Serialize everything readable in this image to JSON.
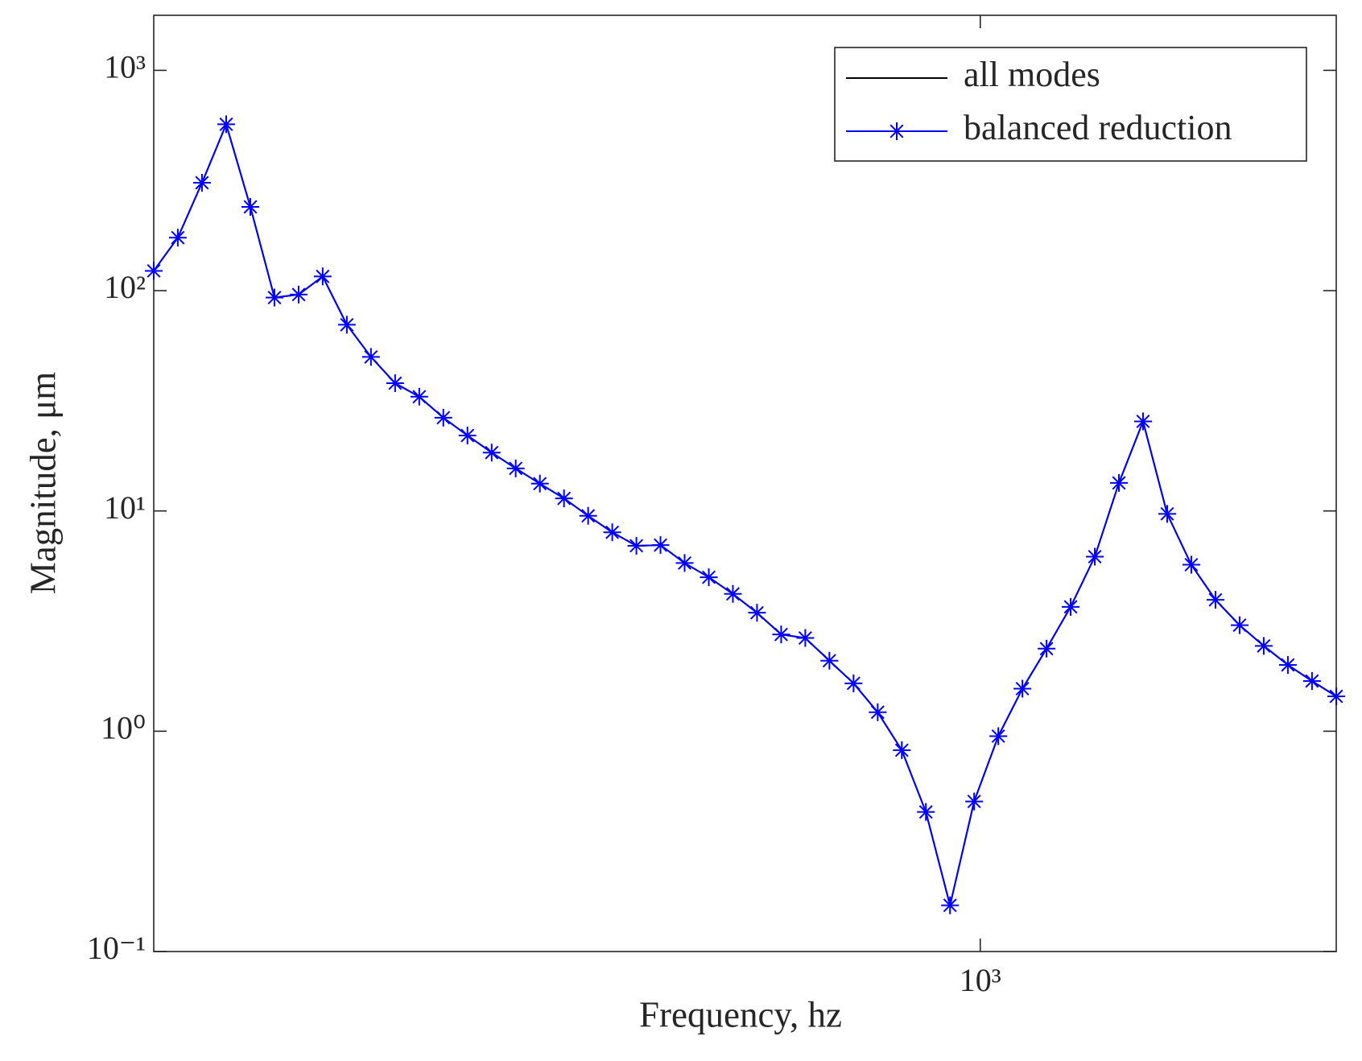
{
  "chart_data": {
    "type": "line",
    "xlabel": "Frequency, hz",
    "ylabel": "Magnitude, μm",
    "xscale": "log",
    "yscale": "log",
    "xlim": [
      200,
      2000
    ],
    "ylim": [
      0.1,
      1778
    ],
    "xticks": [
      {
        "value": 1000,
        "label": "10³"
      }
    ],
    "yticks": [
      {
        "value": 0.1,
        "label": "10⁻¹"
      },
      {
        "value": 1,
        "label": "10⁰"
      },
      {
        "value": 10,
        "label": "10¹"
      },
      {
        "value": 100,
        "label": "10²"
      },
      {
        "value": 1000,
        "label": "10³"
      }
    ],
    "grid": false,
    "legend": "northeast",
    "x": [
      200,
      209.6,
      219.7,
      230.3,
      241.4,
      253.0,
      265.2,
      277.9,
      291.3,
      305.3,
      320.0,
      335.4,
      351.5,
      368.4,
      386.2,
      404.7,
      424.2,
      444.6,
      466.0,
      488.4,
      511.9,
      536.5,
      562.3,
      589.4,
      617.7,
      647.4,
      678.6,
      711.2,
      745.4,
      781.3,
      818.9,
      858.3,
      899.5,
      942.8,
      988.1,
      1035.7,
      1085.5,
      1137.7,
      1192.4,
      1249.8,
      1309.9,
      1372.9,
      1439.0,
      1508.2,
      1580.8,
      1656.9,
      1736.6,
      1820.2,
      1907.8,
      2000
    ],
    "series": [
      {
        "name": "all modes",
        "color": "#000000",
        "marker": "none",
        "values": [
          123,
          174,
          309,
          569,
          240,
          93,
          96,
          116,
          70,
          50,
          38,
          33,
          26.5,
          22,
          18.4,
          15.6,
          13.3,
          11.4,
          9.5,
          8.0,
          6.95,
          7.0,
          5.8,
          5.0,
          4.2,
          3.45,
          2.75,
          2.65,
          2.09,
          1.65,
          1.22,
          0.82,
          0.43,
          0.162,
          0.48,
          0.95,
          1.56,
          2.37,
          3.67,
          6.2,
          13.4,
          25.5,
          9.7,
          5.7,
          3.95,
          3.03,
          2.44,
          2.0,
          1.69,
          1.44
        ]
      },
      {
        "name": "balanced reduction",
        "color": "#0000ff",
        "marker": "asterisk",
        "values": [
          123,
          174,
          309,
          569,
          240,
          93,
          96,
          116,
          70,
          50,
          38,
          33,
          26.5,
          22,
          18.4,
          15.6,
          13.3,
          11.4,
          9.5,
          8.0,
          6.95,
          7.0,
          5.8,
          5.0,
          4.2,
          3.45,
          2.75,
          2.65,
          2.09,
          1.65,
          1.22,
          0.82,
          0.43,
          0.162,
          0.48,
          0.95,
          1.56,
          2.37,
          3.67,
          6.2,
          13.4,
          25.5,
          9.7,
          5.7,
          3.95,
          3.03,
          2.44,
          2.0,
          1.69,
          1.44
        ]
      }
    ]
  }
}
